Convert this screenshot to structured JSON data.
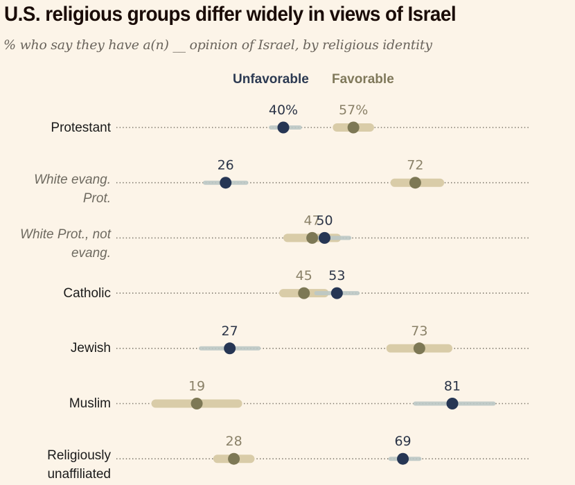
{
  "chart_data": {
    "type": "dot-range",
    "title": "U.S. religious groups differ widely in views of Israel",
    "subtitle": "% who say they have a(n) __ opinion of Israel, by religious identity",
    "legend": [
      {
        "name": "Unfavorable",
        "color": "#263654",
        "range_color": "#bcc8c6"
      },
      {
        "name": "Favorable",
        "color": "#7d7855",
        "range_color": "#d9cca8"
      }
    ],
    "legend_position": "top-center",
    "xlim": [
      0,
      100
    ],
    "grid": false,
    "categories": [
      {
        "label": "Protestant",
        "subgroup": false
      },
      {
        "label": "White evang. Prot.",
        "lines": [
          "White evang.",
          "Prot."
        ],
        "subgroup": true
      },
      {
        "label": "White Prot., not evang.",
        "lines": [
          "White Prot., not",
          "evang."
        ],
        "subgroup": true
      },
      {
        "label": "Catholic",
        "subgroup": false
      },
      {
        "label": "Jewish",
        "subgroup": false
      },
      {
        "label": "Muslim",
        "subgroup": false
      },
      {
        "label": "Religiously unaffiliated",
        "lines": [
          "Religiously",
          "unaffiliated"
        ],
        "subgroup": false
      }
    ],
    "series": [
      {
        "name": "Unfavorable",
        "values": [
          40,
          26,
          50,
          53,
          27,
          81,
          69
        ],
        "labels": [
          "40%",
          "26",
          "50",
          "53",
          "27",
          "81",
          "69"
        ],
        "ranges": [
          [
            37,
            44
          ],
          [
            21,
            31
          ],
          [
            46,
            56
          ],
          [
            48,
            58
          ],
          [
            20,
            34
          ],
          [
            72,
            91
          ],
          [
            66,
            73
          ]
        ]
      },
      {
        "name": "Favorable",
        "values": [
          57,
          72,
          47,
          45,
          73,
          19,
          28
        ],
        "labels": [
          "57%",
          "72",
          "47",
          "45",
          "73",
          "19",
          "28"
        ],
        "ranges": [
          [
            53,
            61
          ],
          [
            67,
            78
          ],
          [
            41,
            53
          ],
          [
            40,
            50
          ],
          [
            66,
            80
          ],
          [
            9,
            29
          ],
          [
            24,
            32
          ]
        ]
      }
    ]
  }
}
